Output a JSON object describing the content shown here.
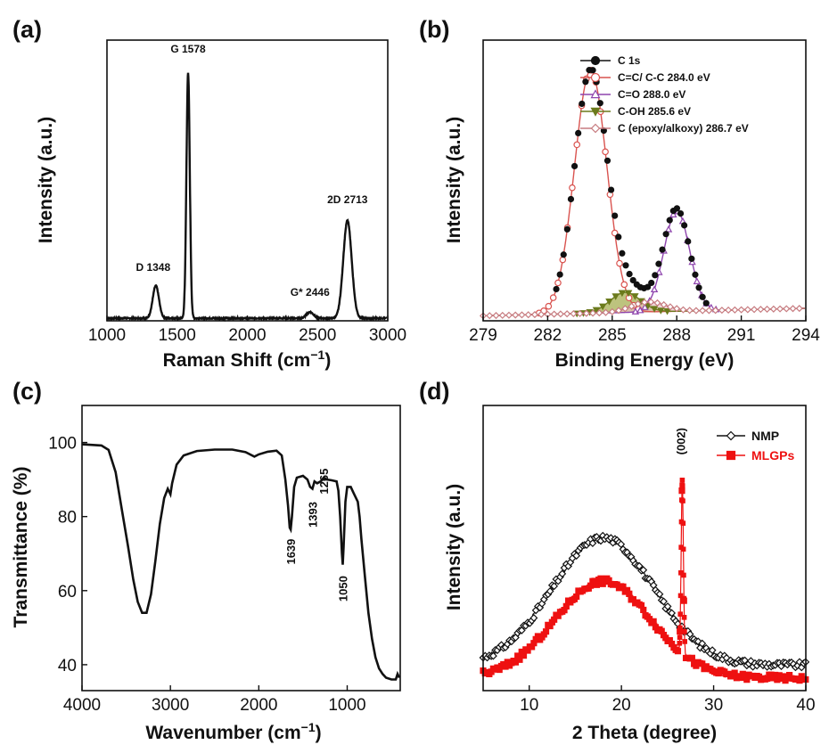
{
  "chart_data": [
    {
      "panel": "(a)",
      "type": "line",
      "xlabel": "Raman Shift (cm",
      "xlabel_sup": "−1",
      "xlabel_tail": ")",
      "ylabel": "Intensity (a.u.)",
      "xlim": [
        1000,
        3000
      ],
      "ylim": [
        0,
        1.12
      ],
      "xticks": [
        1000,
        1500,
        2000,
        2500,
        3000
      ],
      "color": "#111111",
      "peaks": [
        {
          "center": 1348,
          "height": 0.13,
          "width": 22
        },
        {
          "center": 1578,
          "height": 0.98,
          "width": 12
        },
        {
          "center": 2446,
          "height": 0.025,
          "width": 25
        },
        {
          "center": 2713,
          "height": 0.39,
          "width": 30
        }
      ],
      "baseline": 0.01,
      "annotations": [
        {
          "label": "D 1348",
          "x": 1348,
          "y": 0.2
        },
        {
          "label": "G 1578",
          "x": 1578,
          "y": 1.07
        },
        {
          "label": "G* 2446",
          "x": 2446,
          "y": 0.1
        },
        {
          "label": "2D 2713",
          "x": 2713,
          "y": 0.47
        }
      ]
    },
    {
      "panel": "(b)",
      "type": "line",
      "xlabel": "Binding Energy (eV)",
      "ylabel": "Intensity (a.u.)",
      "xlim": [
        279,
        294
      ],
      "ylim": [
        0,
        1.12
      ],
      "xticks": [
        279,
        282,
        285,
        288,
        291,
        294
      ],
      "series": [
        {
          "name": "C 1s",
          "marker": "filled-circle",
          "color": "#111111"
        },
        {
          "name": "C=C/ C-C 284.0 eV",
          "marker": "open-circle",
          "color": "#d9534f",
          "center": 284.0,
          "height": 0.97,
          "width": 0.75
        },
        {
          "name": "C=O 288.0 eV",
          "marker": "open-triangle",
          "color": "#8e44ad",
          "center": 288.0,
          "height": 0.4,
          "width": 0.6
        },
        {
          "name": "C-OH 285.6 eV",
          "marker": "filled-triangle-down",
          "color": "#6b7a1c",
          "center": 285.6,
          "height": 0.08,
          "width": 0.7
        },
        {
          "name": "C (epoxy/alkoxy) 286.7 eV",
          "marker": "open-diamond",
          "color": "#c77c80",
          "center": 286.7,
          "height": 0.04,
          "width": 0.8
        }
      ],
      "baseline_start": 0.02,
      "baseline_end": 0.05
    },
    {
      "panel": "(c)",
      "type": "line",
      "xlabel": "Wavenumber (cm",
      "xlabel_sup": "−1",
      "xlabel_tail": ")",
      "ylabel": "Transmittance (%)",
      "xlim": [
        4000,
        400
      ],
      "ylim": [
        33,
        110
      ],
      "xticks": [
        4000,
        3000,
        2000,
        1000
      ],
      "yticks": [
        40,
        60,
        80,
        100
      ],
      "color": "#111111",
      "points": [
        [
          4000,
          99.5
        ],
        [
          3780,
          99.2
        ],
        [
          3700,
          98.0
        ],
        [
          3620,
          92
        ],
        [
          3550,
          82
        ],
        [
          3480,
          72
        ],
        [
          3420,
          63
        ],
        [
          3370,
          57
        ],
        [
          3320,
          54
        ],
        [
          3270,
          54
        ],
        [
          3220,
          59
        ],
        [
          3170,
          68
        ],
        [
          3120,
          78
        ],
        [
          3070,
          85
        ],
        [
          3030,
          87.5
        ],
        [
          3000,
          86
        ],
        [
          2980,
          89
        ],
        [
          2930,
          94
        ],
        [
          2850,
          96.5
        ],
        [
          2700,
          97.7
        ],
        [
          2500,
          98.1
        ],
        [
          2300,
          98.1
        ],
        [
          2150,
          97.4
        ],
        [
          2050,
          96.2
        ],
        [
          2000,
          96.8
        ],
        [
          1900,
          97.5
        ],
        [
          1800,
          97.8
        ],
        [
          1740,
          96.5
        ],
        [
          1700,
          90
        ],
        [
          1670,
          83
        ],
        [
          1650,
          77
        ],
        [
          1639,
          76.5
        ],
        [
          1625,
          80
        ],
        [
          1600,
          88
        ],
        [
          1570,
          90.5
        ],
        [
          1500,
          91
        ],
        [
          1450,
          90
        ],
        [
          1420,
          88
        ],
        [
          1393,
          87.5
        ],
        [
          1370,
          89.5
        ],
        [
          1340,
          89
        ],
        [
          1300,
          89.5
        ],
        [
          1265,
          90.5
        ],
        [
          1230,
          90
        ],
        [
          1180,
          89.8
        ],
        [
          1120,
          89.5
        ],
        [
          1100,
          87
        ],
        [
          1080,
          80
        ],
        [
          1060,
          70
        ],
        [
          1050,
          67
        ],
        [
          1040,
          72
        ],
        [
          1020,
          84
        ],
        [
          1000,
          88
        ],
        [
          960,
          88
        ],
        [
          930,
          86.5
        ],
        [
          880,
          84
        ],
        [
          860,
          80
        ],
        [
          840,
          74
        ],
        [
          800,
          64
        ],
        [
          760,
          54
        ],
        [
          720,
          47
        ],
        [
          680,
          42
        ],
        [
          640,
          39
        ],
        [
          600,
          37.5
        ],
        [
          560,
          36.5
        ],
        [
          500,
          36
        ],
        [
          450,
          36
        ],
        [
          430,
          37.5
        ],
        [
          410,
          36.5
        ]
      ],
      "annotations": [
        {
          "label": "1639",
          "x": 1639,
          "y": 74
        },
        {
          "label": "1393",
          "x": 1393,
          "y": 84
        },
        {
          "label": "1265",
          "x": 1265,
          "y": 93
        },
        {
          "label": "1050",
          "x": 1050,
          "y": 64
        }
      ]
    },
    {
      "panel": "(d)",
      "type": "scatter",
      "xlabel": "2 Theta (degree)",
      "ylabel": "Intensity (a.u.)",
      "xlim": [
        5,
        40
      ],
      "ylim": [
        0,
        1.12
      ],
      "xticks": [
        10,
        20,
        30,
        40
      ],
      "annotation": {
        "label": "(002)",
        "x": 26.5
      },
      "series": [
        {
          "name": "NMP",
          "marker": "open-diamond",
          "color": "#111111",
          "offset": 0.1,
          "hump_height": 0.5,
          "hump_center": 18,
          "hump_width": 5.5,
          "tail_end": 0.08
        },
        {
          "name": "MLGPs",
          "marker": "filled-square",
          "color": "#ee1111",
          "offset": 0.05,
          "hump_height": 0.38,
          "hump_center": 18,
          "hump_width": 5.2,
          "tail_end": 0.05,
          "peak_center": 26.6,
          "peak_height": 0.68,
          "peak_width": 0.12
        }
      ]
    }
  ]
}
